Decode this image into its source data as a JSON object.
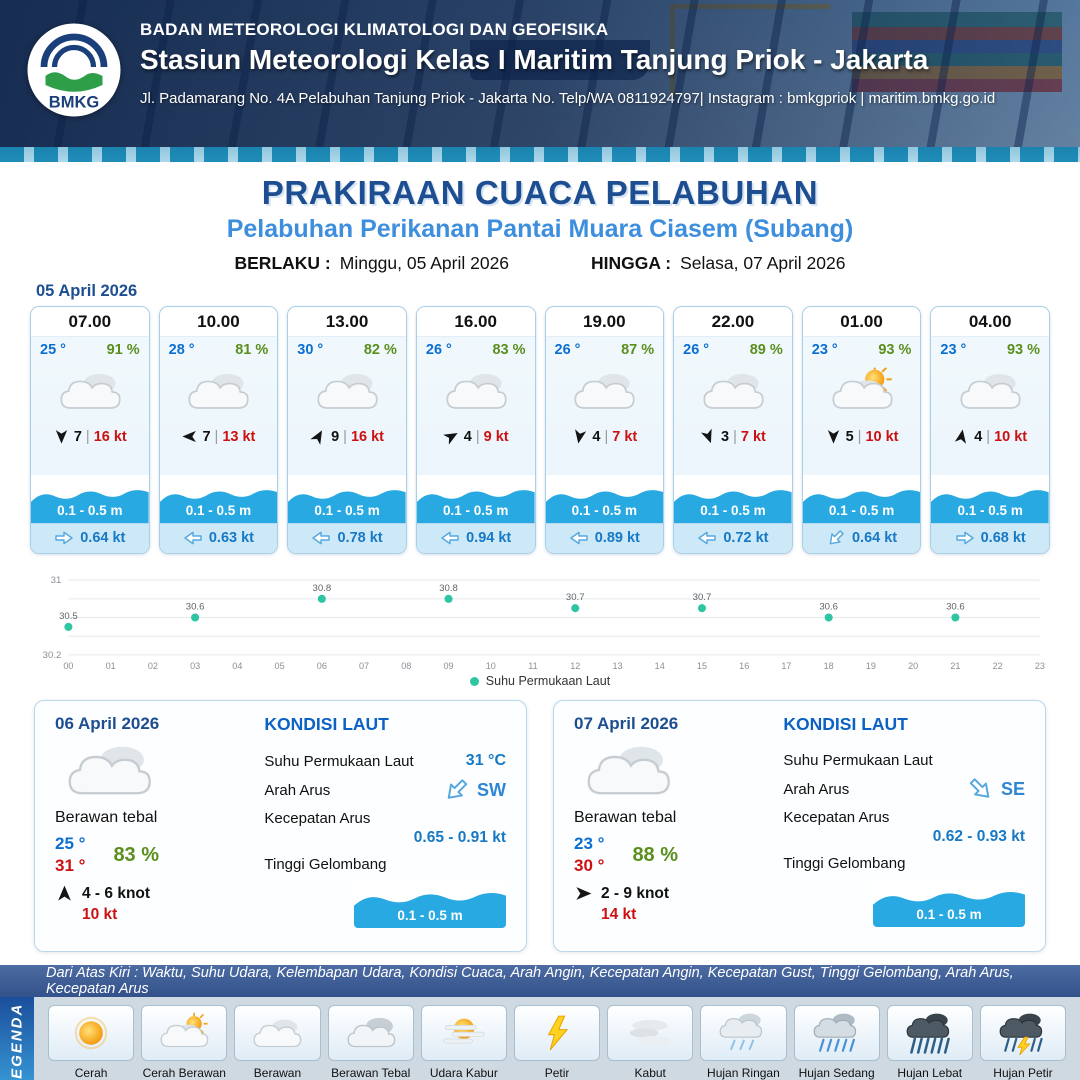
{
  "header": {
    "org": "BADAN METEOROLOGI KLIMATOLOGI DAN GEOFISIKA",
    "station": "Stasiun Meteorologi Kelas I Maritim Tanjung Priok - Jakarta",
    "address": "Jl. Padamarang No. 4A Pelabuhan Tanjung Priok - Jakarta No. Telp/WA 0811924797| Instagram : bmkgpriok | maritim.bmkg.go.id",
    "logo_text": "BMKG"
  },
  "title": {
    "main": "PRAKIRAAN CUACA PELABUHAN",
    "subtitle": "Pelabuhan Perikanan Pantai Muara Ciasem (Subang)"
  },
  "validity": {
    "from_label": "BERLAKU :",
    "from_value": "Minggu, 05 April 2026",
    "to_label": "HINGGA :",
    "to_value": "Selasa, 07 April 2026"
  },
  "forecast": {
    "date": "05 April 2026",
    "cards": [
      {
        "time": "07.00",
        "temp": "25 °",
        "humidity": "91 %",
        "icon": "cloud",
        "wind_deg": 180,
        "wind": "7",
        "sep": "|",
        "gust": "16 kt",
        "wave": "0.1 - 0.5 m",
        "curr_deg": 0,
        "curr": "0.64 kt"
      },
      {
        "time": "10.00",
        "temp": "28 °",
        "humidity": "81 %",
        "icon": "cloud",
        "wind_deg": 270,
        "wind": "7",
        "sep": "|",
        "gust": "13 kt",
        "wave": "0.1 - 0.5 m",
        "curr_deg": 180,
        "curr": "0.63 kt"
      },
      {
        "time": "13.00",
        "temp": "30 °",
        "humidity": "82 %",
        "icon": "cloud",
        "wind_deg": 30,
        "wind": "9",
        "sep": "|",
        "gust": "16 kt",
        "wave": "0.1 - 0.5 m",
        "curr_deg": 180,
        "curr": "0.78 kt"
      },
      {
        "time": "16.00",
        "temp": "26 °",
        "humidity": "83 %",
        "icon": "cloud",
        "wind_deg": 60,
        "wind": "4",
        "sep": "|",
        "gust": "9 kt",
        "wave": "0.1 - 0.5 m",
        "curr_deg": 180,
        "curr": "0.94 kt"
      },
      {
        "time": "19.00",
        "temp": "26 °",
        "humidity": "87 %",
        "icon": "cloud",
        "wind_deg": 190,
        "wind": "4",
        "sep": "|",
        "gust": "7 kt",
        "wave": "0.1 - 0.5 m",
        "curr_deg": 180,
        "curr": "0.89 kt"
      },
      {
        "time": "22.00",
        "temp": "26 °",
        "humidity": "89 %",
        "icon": "cloud",
        "wind_deg": 160,
        "wind": "3",
        "sep": "|",
        "gust": "7 kt",
        "wave": "0.1 - 0.5 m",
        "curr_deg": 180,
        "curr": "0.72 kt"
      },
      {
        "time": "01.00",
        "temp": "23 °",
        "humidity": "93 %",
        "icon": "sun-cloud",
        "wind_deg": 180,
        "wind": "5",
        "sep": "|",
        "gust": "10 kt",
        "wave": "0.1 - 0.5 m",
        "curr_deg": 135,
        "curr": "0.64 kt"
      },
      {
        "time": "04.00",
        "temp": "23 °",
        "humidity": "93 %",
        "icon": "cloud",
        "wind_deg": 10,
        "wind": "4",
        "sep": "|",
        "gust": "10 kt",
        "wave": "0.1 - 0.5 m",
        "curr_deg": 0,
        "curr": "0.68 kt"
      }
    ]
  },
  "chart_data": {
    "type": "scatter",
    "legend": "Suhu Permukaan Laut",
    "legend_position": "bottom",
    "ylim": [
      30.2,
      31
    ],
    "y_gridlines": [
      30.2,
      30.4,
      30.6,
      30.8,
      31
    ],
    "y_labels_shown": [
      "31",
      "30.2"
    ],
    "x_ticks": [
      "00",
      "01",
      "02",
      "03",
      "04",
      "05",
      "06",
      "07",
      "08",
      "09",
      "10",
      "11",
      "12",
      "13",
      "14",
      "15",
      "16",
      "17",
      "18",
      "19",
      "20",
      "21",
      "22",
      "23"
    ],
    "point_color": "#2fc5a2",
    "series": [
      {
        "name": "Suhu Permukaan Laut",
        "x": [
          0,
          3,
          6,
          9,
          12,
          15,
          18,
          21
        ],
        "values": [
          30.5,
          30.6,
          30.8,
          30.8,
          30.7,
          30.7,
          30.6,
          30.6
        ]
      }
    ]
  },
  "day_cards": [
    {
      "date": "06 April 2026",
      "icon": "cloud",
      "condition": "Berawan tebal",
      "temp_min": "25 °",
      "temp_max": "31 °",
      "humidity": "83 %",
      "wind_deg": 0,
      "wind": "4 - 6 knot",
      "gust": "10 kt",
      "sea": {
        "title": "KONDISI LAUT",
        "sst_label": "Suhu Permukaan Laut",
        "sst": "31 °C",
        "dir_label": "Arah Arus",
        "dir": "SW",
        "dir_deg": 135,
        "speed_label": "Kecepatan Arus",
        "speed": "0.65 - 0.91 kt",
        "wave_label": "Tinggi Gelombang",
        "wave": "0.1 - 0.5 m"
      }
    },
    {
      "date": "07 April 2026",
      "icon": "cloud",
      "condition": "Berawan tebal",
      "temp_min": "23 °",
      "temp_max": "30 °",
      "humidity": "88 %",
      "wind_deg": 90,
      "wind": "2 - 9 knot",
      "gust": "14 kt",
      "sea": {
        "title": "KONDISI LAUT",
        "sst_label": "Suhu Permukaan Laut",
        "sst": "",
        "dir_label": "Arah Arus",
        "dir": "SE",
        "dir_deg": 45,
        "speed_label": "Kecepatan Arus",
        "speed": "0.62 - 0.93 kt",
        "wave_label": "Tinggi Gelombang",
        "wave": "0.1 - 0.5 m"
      }
    }
  ],
  "legend": {
    "bar_text": "Dari Atas Kiri : Waktu, Suhu Udara, Kelembapan Udara, Kondisi Cuaca, Arah Angin, Kecepatan Angin, Kecepatan Gust, Tinggi Gelombang, Arah Arus, Kecepatan Arus",
    "title": "LEGENDA",
    "items": [
      {
        "label": "Cerah",
        "icon": "sun"
      },
      {
        "label": "Cerah Berawan",
        "icon": "sun-cloud"
      },
      {
        "label": "Berawan",
        "icon": "cloud"
      },
      {
        "label": "Berawan Tebal",
        "icon": "cloud-thick"
      },
      {
        "label": "Udara Kabur",
        "icon": "haze"
      },
      {
        "label": "Petir",
        "icon": "lightning"
      },
      {
        "label": "Kabut",
        "icon": "fog"
      },
      {
        "label": "Hujan Ringan",
        "icon": "rain-light"
      },
      {
        "label": "Hujan Sedang",
        "icon": "rain-moderate"
      },
      {
        "label": "Hujan Lebat",
        "icon": "rain-heavy"
      },
      {
        "label": "Hujan Petir",
        "icon": "rain-thunder"
      }
    ]
  }
}
